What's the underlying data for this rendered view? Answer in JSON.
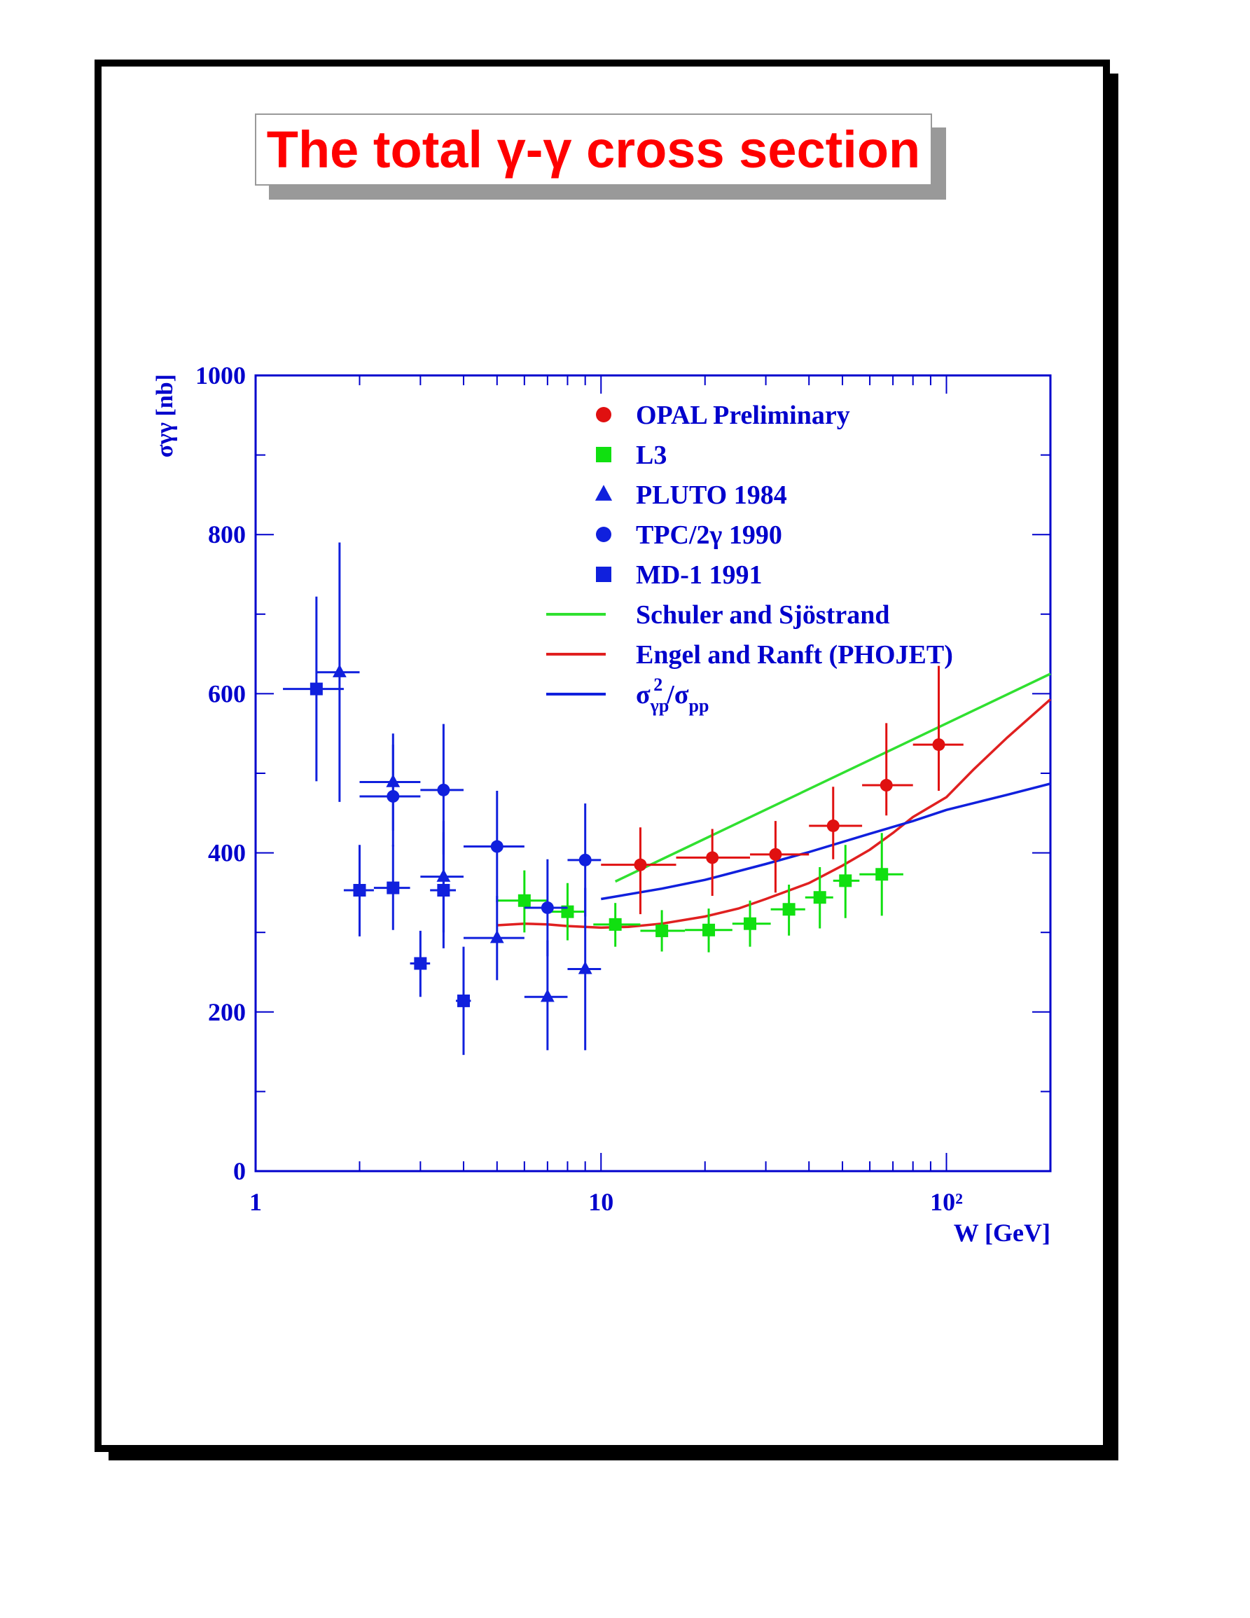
{
  "title": "The total γ-γ cross section",
  "colors": {
    "axis": "#0000cc",
    "title": "#ff0000",
    "opal": "#e01010",
    "l3": "#10e010",
    "blue_data": "#1020dd",
    "ss_line": "#30e030",
    "er_line": "#e02020",
    "ratio_line": "#1020dd"
  },
  "chart_data": {
    "type": "scatter",
    "x_scale": "log",
    "xlim": [
      1,
      200
    ],
    "ylim": [
      0,
      1000
    ],
    "xlabel": "W [GeV]",
    "ylabel": "σγγ [nb]",
    "x_ticks": [
      "1",
      "10",
      "10²"
    ],
    "y_ticks": [
      "0",
      "200",
      "400",
      "600",
      "800",
      "1000"
    ],
    "grid": false,
    "legend_position": "top-right",
    "series": [
      {
        "name": "OPAL Preliminary",
        "marker": "circle",
        "color": "#e01010",
        "points": [
          {
            "x": 13,
            "y": 385,
            "xlo": 10,
            "xhi": 16.5,
            "ylo": 323,
            "yhi": 432
          },
          {
            "x": 21,
            "y": 394,
            "xlo": 16.5,
            "xhi": 27,
            "ylo": 346,
            "yhi": 430
          },
          {
            "x": 32,
            "y": 398,
            "xlo": 27,
            "xhi": 40,
            "ylo": 350,
            "yhi": 440
          },
          {
            "x": 47,
            "y": 434,
            "xlo": 40,
            "xhi": 57,
            "ylo": 392,
            "yhi": 483
          },
          {
            "x": 67,
            "y": 485,
            "xlo": 57,
            "xhi": 80,
            "ylo": 447,
            "yhi": 563
          },
          {
            "x": 95,
            "y": 536,
            "xlo": 80,
            "xhi": 112,
            "ylo": 478,
            "yhi": 635
          }
        ]
      },
      {
        "name": "L3",
        "marker": "square",
        "color": "#10e010",
        "points": [
          {
            "x": 6,
            "y": 340,
            "xlo": 5,
            "xhi": 7,
            "ylo": 300,
            "yhi": 378
          },
          {
            "x": 8,
            "y": 326,
            "xlo": 7,
            "xhi": 9,
            "ylo": 290,
            "yhi": 362
          },
          {
            "x": 11,
            "y": 310,
            "xlo": 9.5,
            "xhi": 13,
            "ylo": 282,
            "yhi": 337
          },
          {
            "x": 15,
            "y": 302,
            "xlo": 13,
            "xhi": 17.5,
            "ylo": 276,
            "yhi": 328
          },
          {
            "x": 20.5,
            "y": 303,
            "xlo": 17.5,
            "xhi": 24,
            "ylo": 275,
            "yhi": 330
          },
          {
            "x": 27,
            "y": 311,
            "xlo": 24,
            "xhi": 31,
            "ylo": 282,
            "yhi": 340
          },
          {
            "x": 35,
            "y": 329,
            "xlo": 31,
            "xhi": 39,
            "ylo": 296,
            "yhi": 360
          },
          {
            "x": 43,
            "y": 344,
            "xlo": 39,
            "xhi": 47,
            "ylo": 305,
            "yhi": 382
          },
          {
            "x": 51,
            "y": 365,
            "xlo": 47,
            "xhi": 56,
            "ylo": 318,
            "yhi": 410
          },
          {
            "x": 65,
            "y": 373,
            "xlo": 56,
            "xhi": 75,
            "ylo": 321,
            "yhi": 425
          }
        ]
      },
      {
        "name": "PLUTO 1984",
        "marker": "triangle",
        "color": "#1020dd",
        "points": [
          {
            "x": 1.75,
            "y": 627,
            "xlo": 1.5,
            "xhi": 2,
            "ylo": 464,
            "yhi": 790
          },
          {
            "x": 2.5,
            "y": 489,
            "xlo": 2,
            "xhi": 3,
            "ylo": 428,
            "yhi": 550
          },
          {
            "x": 3.5,
            "y": 370,
            "xlo": 3,
            "xhi": 4,
            "ylo": 300,
            "yhi": 440
          },
          {
            "x": 5,
            "y": 293,
            "xlo": 4,
            "xhi": 6,
            "ylo": 240,
            "yhi": 346
          },
          {
            "x": 7,
            "y": 219,
            "xlo": 6,
            "xhi": 8,
            "ylo": 152,
            "yhi": 290
          },
          {
            "x": 9,
            "y": 254,
            "xlo": 8,
            "xhi": 10,
            "ylo": 152,
            "yhi": 356
          }
        ]
      },
      {
        "name": "TPC/2γ 1990",
        "marker": "circle",
        "color": "#1020dd",
        "points": [
          {
            "x": 2.5,
            "y": 471,
            "xlo": 2,
            "xhi": 3,
            "ylo": 408,
            "yhi": 536
          },
          {
            "x": 3.5,
            "y": 479,
            "xlo": 3,
            "xhi": 4,
            "ylo": 398,
            "yhi": 562
          },
          {
            "x": 5,
            "y": 408,
            "xlo": 4,
            "xhi": 6,
            "ylo": 338,
            "yhi": 478
          },
          {
            "x": 7,
            "y": 331,
            "xlo": 6,
            "xhi": 8,
            "ylo": 270,
            "yhi": 392
          },
          {
            "x": 9,
            "y": 391,
            "xlo": 8,
            "xhi": 10,
            "ylo": 320,
            "yhi": 462
          }
        ]
      },
      {
        "name": "MD-1 1991",
        "marker": "square",
        "color": "#1020dd",
        "points": [
          {
            "x": 1.5,
            "y": 606,
            "xlo": 1.2,
            "xhi": 1.8,
            "ylo": 490,
            "yhi": 722
          },
          {
            "x": 2.0,
            "y": 353,
            "xlo": 1.8,
            "xhi": 2.2,
            "ylo": 295,
            "yhi": 410
          },
          {
            "x": 2.5,
            "y": 356,
            "xlo": 2.2,
            "xhi": 2.8,
            "ylo": 303,
            "yhi": 410
          },
          {
            "x": 3.0,
            "y": 261,
            "xlo": 2.8,
            "xhi": 3.2,
            "ylo": 219,
            "yhi": 302
          },
          {
            "x": 3.5,
            "y": 353,
            "xlo": 3.2,
            "xhi": 3.8,
            "ylo": 280,
            "yhi": 426
          },
          {
            "x": 4.0,
            "y": 214,
            "xlo": 3.8,
            "xhi": 4.2,
            "ylo": 146,
            "yhi": 282
          }
        ]
      }
    ],
    "curves": [
      {
        "name": "Schuler and Sjöstrand",
        "color": "#30e030",
        "points": [
          [
            11,
            364
          ],
          [
            200,
            625
          ]
        ]
      },
      {
        "name": "Engel and Ranft (PHOJET)",
        "color": "#e02020",
        "points": [
          [
            5,
            309
          ],
          [
            6,
            311
          ],
          [
            7,
            310
          ],
          [
            8,
            308
          ],
          [
            10,
            306
          ],
          [
            12,
            307
          ],
          [
            15,
            311
          ],
          [
            20,
            320
          ],
          [
            25,
            330
          ],
          [
            30,
            342
          ],
          [
            40,
            362
          ],
          [
            50,
            384
          ],
          [
            60,
            404
          ],
          [
            70,
            425
          ],
          [
            80,
            445
          ],
          [
            100,
            470
          ],
          [
            120,
            505
          ],
          [
            150,
            545
          ],
          [
            200,
            593
          ]
        ]
      },
      {
        "name": "σγp²/σpp",
        "color": "#1020dd",
        "points": [
          [
            10,
            342
          ],
          [
            15,
            355
          ],
          [
            20,
            366
          ],
          [
            30,
            386
          ],
          [
            40,
            401
          ],
          [
            60,
            424
          ],
          [
            80,
            440
          ],
          [
            100,
            454
          ],
          [
            150,
            473
          ],
          [
            200,
            487
          ]
        ]
      }
    ]
  }
}
